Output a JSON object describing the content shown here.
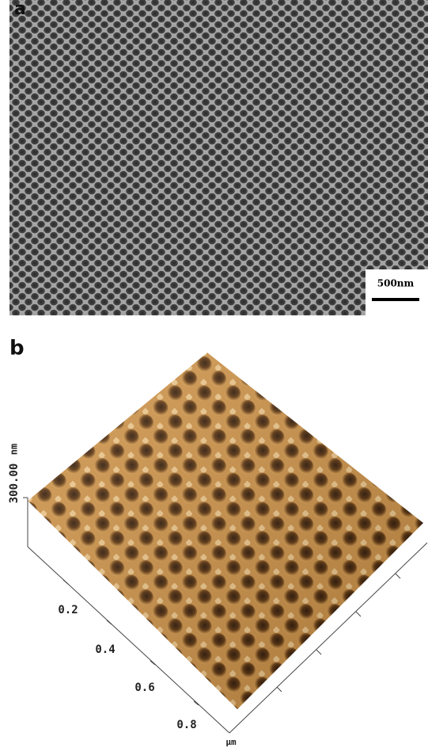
{
  "panel_a": {
    "label": "a",
    "scale_bar": "500nm"
  },
  "panel_b": {
    "label": "b",
    "z_scale": "300.00",
    "z_unit": "nm",
    "axis_labels": [
      "0.2",
      "0.4",
      "0.6",
      "0.8"
    ],
    "axis_unit": "µm"
  }
}
